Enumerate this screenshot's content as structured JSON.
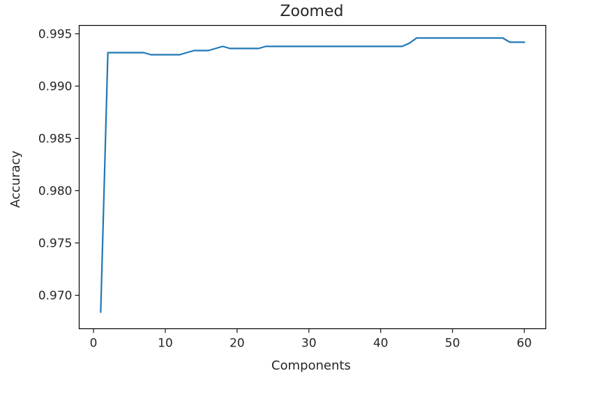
{
  "chart_data": {
    "type": "line",
    "title": "Zoomed",
    "xlabel": "Components",
    "ylabel": "Accuracy",
    "xlim": [
      -2,
      63
    ],
    "ylim": [
      0.9668,
      0.9958
    ],
    "x_ticks": [
      0,
      10,
      20,
      30,
      40,
      50,
      60
    ],
    "x_tick_labels": [
      "0",
      "10",
      "20",
      "30",
      "40",
      "50",
      "60"
    ],
    "y_ticks": [
      0.97,
      0.975,
      0.98,
      0.985,
      0.99,
      0.995
    ],
    "y_tick_labels": [
      "0.970",
      "0.975",
      "0.980",
      "0.985",
      "0.990",
      "0.995"
    ],
    "grid": false,
    "legend": "none",
    "series": [
      {
        "color": "#1f77b4",
        "x": [
          1,
          2,
          3,
          4,
          5,
          6,
          7,
          8,
          9,
          10,
          11,
          12,
          13,
          14,
          15,
          16,
          17,
          18,
          19,
          20,
          21,
          22,
          23,
          24,
          25,
          26,
          27,
          28,
          29,
          30,
          31,
          32,
          33,
          34,
          35,
          36,
          37,
          38,
          39,
          40,
          41,
          42,
          43,
          44,
          45,
          46,
          47,
          48,
          49,
          50,
          51,
          52,
          53,
          54,
          55,
          56,
          57,
          58,
          59,
          60
        ],
        "values": [
          0.9684,
          0.9932,
          0.9932,
          0.9932,
          0.9932,
          0.9932,
          0.9932,
          0.993,
          0.993,
          0.993,
          0.993,
          0.993,
          0.9932,
          0.9934,
          0.9934,
          0.9934,
          0.9936,
          0.9938,
          0.9936,
          0.9936,
          0.9936,
          0.9936,
          0.9936,
          0.9938,
          0.9938,
          0.9938,
          0.9938,
          0.9938,
          0.9938,
          0.9938,
          0.9938,
          0.9938,
          0.9938,
          0.9938,
          0.9938,
          0.9938,
          0.9938,
          0.9938,
          0.9938,
          0.9938,
          0.9938,
          0.9938,
          0.9938,
          0.9941,
          0.9946,
          0.9946,
          0.9946,
          0.9946,
          0.9946,
          0.9946,
          0.9946,
          0.9946,
          0.9946,
          0.9946,
          0.9946,
          0.9946,
          0.9946,
          0.9942,
          0.9942,
          0.9942
        ]
      }
    ]
  }
}
